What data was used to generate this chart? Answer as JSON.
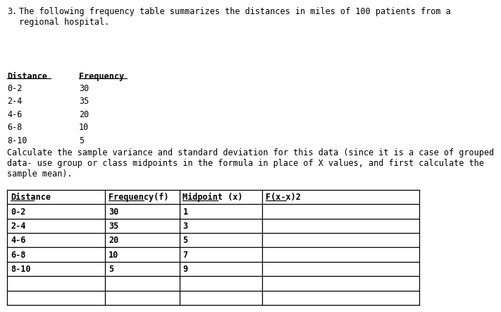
{
  "title_number": "3.",
  "title_rest": "The following frequency table summarizes the distances in miles of 100 patients from a\nregional hospital.",
  "simple_table_headers": [
    "Distance",
    "Frequency"
  ],
  "simple_table_rows": [
    [
      "0-2",
      "30"
    ],
    [
      "2-4",
      "35"
    ],
    [
      "4-6",
      "20"
    ],
    [
      "6-8",
      "10"
    ],
    [
      "8-10",
      "5"
    ]
  ],
  "calculate_text": "Calculate the sample variance and standard deviation for this data (since it is a case of grouped\ndata- use group or class midpoints in the formula in place of X values, and first calculate the\nsample mean).",
  "detail_table_headers": [
    "Distance",
    "Frequency(f)",
    "Midpoint (x)",
    "F(x-x)2"
  ],
  "detail_table_rows": [
    [
      "0-2",
      "30",
      "1",
      ""
    ],
    [
      "2-4",
      "35",
      "3",
      ""
    ],
    [
      "4-6",
      "20",
      "5",
      ""
    ],
    [
      "6-8",
      "10",
      "7",
      ""
    ],
    [
      "8-10",
      "5",
      "9",
      ""
    ],
    [
      "",
      "",
      "",
      ""
    ],
    [
      "",
      "",
      "",
      ""
    ]
  ],
  "bg_color": "#ffffff",
  "text_color": "#000000",
  "font_size": 8.5
}
